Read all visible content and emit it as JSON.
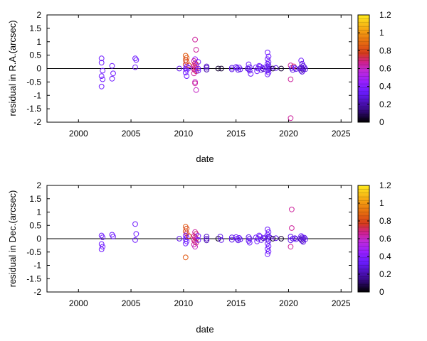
{
  "chart_data": [
    {
      "type": "scatter",
      "xlabel": "date",
      "ylabel": "residual in R.A.(arcsec)",
      "xlim": [
        1997,
        2026
      ],
      "ylim": [
        -2,
        2
      ],
      "xticks": [
        "2000",
        "2005",
        "2010",
        "2015",
        "2020",
        "2025"
      ],
      "yticks": [
        "2",
        "1.5",
        "1",
        "0.5",
        "0",
        "-0.5",
        "-1",
        "-1.5",
        "-2"
      ],
      "colorbar": {
        "range": [
          0,
          1.2
        ],
        "ticks": [
          "1.2",
          "1",
          "0.8",
          "0.6",
          "0.4",
          "0.2",
          "0"
        ]
      },
      "reference_line": 0,
      "points": [
        [
          2002.2,
          0.38,
          0.35
        ],
        [
          2002.2,
          0.22,
          0.35
        ],
        [
          2002.3,
          -0.08,
          0.35
        ],
        [
          2002.2,
          -0.28,
          0.35
        ],
        [
          2002.3,
          -0.4,
          0.35
        ],
        [
          2002.2,
          -0.67,
          0.35
        ],
        [
          2003.2,
          0.1,
          0.35
        ],
        [
          2003.3,
          -0.18,
          0.35
        ],
        [
          2003.2,
          -0.38,
          0.35
        ],
        [
          2005.4,
          0.38,
          0.35
        ],
        [
          2005.5,
          0.32,
          0.35
        ],
        [
          2005.4,
          0.05,
          0.35
        ],
        [
          2009.6,
          0.0,
          0.3
        ],
        [
          2010.2,
          0.48,
          0.85
        ],
        [
          2010.3,
          0.4,
          0.85
        ],
        [
          2010.2,
          0.32,
          0.8
        ],
        [
          2010.3,
          0.25,
          0.8
        ],
        [
          2010.2,
          0.15,
          0.75
        ],
        [
          2010.3,
          0.08,
          0.4
        ],
        [
          2010.2,
          0.0,
          0.35
        ],
        [
          2010.3,
          -0.05,
          0.35
        ],
        [
          2010.2,
          -0.15,
          0.35
        ],
        [
          2010.3,
          -0.28,
          0.35
        ],
        [
          2010.5,
          0.12,
          0.8
        ],
        [
          2010.5,
          0.02,
          0.35
        ],
        [
          2011.1,
          1.08,
          0.65
        ],
        [
          2011.2,
          0.7,
          0.65
        ],
        [
          2011.1,
          0.35,
          0.45
        ],
        [
          2011.0,
          0.28,
          0.65
        ],
        [
          2011.1,
          0.2,
          0.7
        ],
        [
          2011.2,
          0.15,
          0.7
        ],
        [
          2011.0,
          0.1,
          0.65
        ],
        [
          2011.1,
          0.06,
          0.7
        ],
        [
          2011.2,
          0.02,
          0.65
        ],
        [
          2011.0,
          -0.02,
          0.65
        ],
        [
          2011.1,
          -0.06,
          0.7
        ],
        [
          2011.2,
          -0.1,
          0.7
        ],
        [
          2011.0,
          -0.18,
          0.65
        ],
        [
          2011.1,
          -0.5,
          0.6
        ],
        [
          2011.1,
          -0.55,
          0.65
        ],
        [
          2011.2,
          -0.8,
          0.6
        ],
        [
          2011.4,
          0.25,
          0.35
        ],
        [
          2011.4,
          0.0,
          0.35
        ],
        [
          2011.4,
          -0.08,
          0.35
        ],
        [
          2012.2,
          0.08,
          0.25
        ],
        [
          2012.2,
          0.03,
          0.25
        ],
        [
          2012.2,
          -0.04,
          0.2
        ],
        [
          2013.3,
          0.0,
          0.05
        ],
        [
          2013.6,
          0.0,
          0.05
        ],
        [
          2014.6,
          0.03,
          0.3
        ],
        [
          2014.6,
          -0.03,
          0.3
        ],
        [
          2015.0,
          0.06,
          0.35
        ],
        [
          2015.1,
          0.02,
          0.3
        ],
        [
          2015.2,
          -0.05,
          0.3
        ],
        [
          2015.3,
          0.04,
          0.35
        ],
        [
          2015.4,
          -0.03,
          0.3
        ],
        [
          2016.2,
          0.16,
          0.35
        ],
        [
          2016.3,
          0.05,
          0.3
        ],
        [
          2016.2,
          -0.02,
          0.3
        ],
        [
          2016.3,
          -0.08,
          0.3
        ],
        [
          2016.4,
          -0.2,
          0.35
        ],
        [
          2016.1,
          0.0,
          0.3
        ],
        [
          2016.9,
          0.05,
          0.35
        ],
        [
          2017.1,
          0.0,
          0.3
        ],
        [
          2017.3,
          0.08,
          0.35
        ],
        [
          2017.4,
          -0.05,
          0.3
        ],
        [
          2017.5,
          0.02,
          0.3
        ],
        [
          2017.6,
          -0.02,
          0.25
        ],
        [
          2017.2,
          0.1,
          0.35
        ],
        [
          2017.8,
          0.05,
          0.35
        ],
        [
          2017.0,
          -0.1,
          0.35
        ],
        [
          2018.0,
          0.6,
          0.35
        ],
        [
          2018.1,
          0.45,
          0.35
        ],
        [
          2018.0,
          0.35,
          0.35
        ],
        [
          2018.1,
          0.25,
          0.35
        ],
        [
          2018.0,
          0.18,
          0.35
        ],
        [
          2018.1,
          0.12,
          0.3
        ],
        [
          2018.0,
          0.05,
          0.3
        ],
        [
          2018.1,
          -0.02,
          0.3
        ],
        [
          2018.0,
          -0.08,
          0.3
        ],
        [
          2018.1,
          -0.15,
          0.35
        ],
        [
          2018.0,
          -0.22,
          0.35
        ],
        [
          2018.2,
          0.0,
          0.3
        ],
        [
          2018.5,
          0.0,
          0.05
        ],
        [
          2018.8,
          0.02,
          0.3
        ],
        [
          2019.3,
          0.0,
          0.05
        ],
        [
          2020.2,
          0.12,
          0.65
        ],
        [
          2020.3,
          0.02,
          0.3
        ],
        [
          2020.4,
          -0.05,
          0.3
        ],
        [
          2020.2,
          -0.4,
          0.65
        ],
        [
          2020.2,
          -1.85,
          0.65
        ],
        [
          2020.5,
          0.08,
          0.7
        ],
        [
          2020.6,
          0.02,
          0.3
        ],
        [
          2020.7,
          -0.02,
          0.3
        ],
        [
          2021.2,
          0.3,
          0.35
        ],
        [
          2021.3,
          0.18,
          0.3
        ],
        [
          2021.4,
          0.1,
          0.3
        ],
        [
          2021.2,
          0.05,
          0.25
        ],
        [
          2021.3,
          0.0,
          0.2
        ],
        [
          2021.4,
          -0.04,
          0.2
        ],
        [
          2021.2,
          -0.08,
          0.25
        ],
        [
          2021.3,
          -0.12,
          0.3
        ],
        [
          2021.5,
          0.05,
          0.3
        ],
        [
          2021.6,
          -0.02,
          0.3
        ],
        [
          2021.1,
          0.0,
          0.25
        ]
      ]
    },
    {
      "type": "scatter",
      "xlabel": "date",
      "ylabel": "residual in Dec.(arcsec)",
      "xlim": [
        1997,
        2026
      ],
      "ylim": [
        -2,
        2
      ],
      "xticks": [
        "2000",
        "2005",
        "2010",
        "2015",
        "2020",
        "2025"
      ],
      "yticks": [
        "2",
        "1.5",
        "1",
        "0.5",
        "0",
        "-0.5",
        "-1",
        "-1.5",
        "-2"
      ],
      "colorbar": {
        "range": [
          0,
          1.2
        ],
        "ticks": [
          "1.2",
          "1",
          "0.8",
          "0.6",
          "0.4",
          "0.2",
          "0"
        ]
      },
      "reference_line": 0,
      "points": [
        [
          2002.2,
          0.12,
          0.35
        ],
        [
          2002.3,
          0.05,
          0.35
        ],
        [
          2002.2,
          -0.2,
          0.35
        ],
        [
          2002.3,
          -0.3,
          0.35
        ],
        [
          2002.2,
          -0.4,
          0.35
        ],
        [
          2003.2,
          0.15,
          0.35
        ],
        [
          2003.3,
          0.08,
          0.35
        ],
        [
          2005.4,
          0.55,
          0.35
        ],
        [
          2005.5,
          0.18,
          0.35
        ],
        [
          2005.4,
          -0.05,
          0.35
        ],
        [
          2009.6,
          0.0,
          0.3
        ],
        [
          2010.2,
          0.45,
          0.85
        ],
        [
          2010.3,
          0.38,
          0.8
        ],
        [
          2010.2,
          0.28,
          0.8
        ],
        [
          2010.3,
          0.2,
          0.75
        ],
        [
          2010.2,
          0.12,
          0.4
        ],
        [
          2010.3,
          0.05,
          0.35
        ],
        [
          2010.2,
          -0.02,
          0.35
        ],
        [
          2010.3,
          -0.1,
          0.35
        ],
        [
          2010.2,
          -0.18,
          0.35
        ],
        [
          2010.2,
          -0.7,
          0.85
        ],
        [
          2010.5,
          0.1,
          0.8
        ],
        [
          2011.1,
          0.25,
          0.65
        ],
        [
          2011.2,
          0.18,
          0.7
        ],
        [
          2011.0,
          0.1,
          0.65
        ],
        [
          2011.1,
          0.05,
          0.7
        ],
        [
          2011.2,
          0.0,
          0.65
        ],
        [
          2011.0,
          -0.05,
          0.65
        ],
        [
          2011.1,
          -0.1,
          0.7
        ],
        [
          2011.2,
          -0.15,
          0.7
        ],
        [
          2011.0,
          -0.22,
          0.65
        ],
        [
          2011.1,
          -0.3,
          0.6
        ],
        [
          2011.4,
          0.1,
          0.35
        ],
        [
          2011.4,
          -0.05,
          0.35
        ],
        [
          2012.2,
          0.08,
          0.25
        ],
        [
          2012.2,
          0.0,
          0.25
        ],
        [
          2012.2,
          -0.06,
          0.2
        ],
        [
          2013.3,
          0.0,
          0.05
        ],
        [
          2013.5,
          0.08,
          0.3
        ],
        [
          2013.6,
          -0.05,
          0.3
        ],
        [
          2014.6,
          0.05,
          0.3
        ],
        [
          2014.6,
          -0.04,
          0.3
        ],
        [
          2015.0,
          0.06,
          0.35
        ],
        [
          2015.1,
          0.0,
          0.3
        ],
        [
          2015.2,
          -0.06,
          0.3
        ],
        [
          2015.3,
          0.03,
          0.35
        ],
        [
          2015.4,
          -0.03,
          0.3
        ],
        [
          2016.2,
          0.06,
          0.3
        ],
        [
          2016.3,
          0.0,
          0.3
        ],
        [
          2016.2,
          -0.08,
          0.3
        ],
        [
          2016.3,
          -0.15,
          0.35
        ],
        [
          2016.9,
          0.05,
          0.35
        ],
        [
          2017.1,
          0.0,
          0.3
        ],
        [
          2017.3,
          0.08,
          0.35
        ],
        [
          2017.4,
          -0.05,
          0.3
        ],
        [
          2017.6,
          0.02,
          0.25
        ],
        [
          2017.2,
          0.12,
          0.35
        ],
        [
          2017.8,
          0.05,
          0.35
        ],
        [
          2017.0,
          -0.1,
          0.35
        ],
        [
          2018.0,
          0.35,
          0.35
        ],
        [
          2018.1,
          0.25,
          0.35
        ],
        [
          2018.0,
          0.15,
          0.35
        ],
        [
          2018.1,
          0.08,
          0.3
        ],
        [
          2018.0,
          0.0,
          0.3
        ],
        [
          2018.1,
          -0.08,
          0.3
        ],
        [
          2018.0,
          -0.18,
          0.35
        ],
        [
          2018.1,
          -0.28,
          0.35
        ],
        [
          2018.0,
          -0.38,
          0.35
        ],
        [
          2018.1,
          -0.48,
          0.35
        ],
        [
          2018.0,
          -0.58,
          0.35
        ],
        [
          2018.2,
          0.05,
          0.3
        ],
        [
          2018.5,
          0.0,
          0.05
        ],
        [
          2018.8,
          0.02,
          0.3
        ],
        [
          2019.3,
          0.0,
          0.05
        ],
        [
          2020.3,
          1.1,
          0.65
        ],
        [
          2020.3,
          0.4,
          0.65
        ],
        [
          2020.2,
          0.08,
          0.3
        ],
        [
          2020.4,
          0.0,
          0.3
        ],
        [
          2020.2,
          -0.06,
          0.3
        ],
        [
          2020.2,
          -0.3,
          0.65
        ],
        [
          2020.6,
          0.02,
          0.3
        ],
        [
          2020.7,
          -0.02,
          0.3
        ],
        [
          2021.2,
          0.1,
          0.35
        ],
        [
          2021.3,
          0.05,
          0.3
        ],
        [
          2021.4,
          0.0,
          0.25
        ],
        [
          2021.2,
          -0.04,
          0.2
        ],
        [
          2021.3,
          -0.08,
          0.25
        ],
        [
          2021.4,
          -0.12,
          0.3
        ],
        [
          2021.5,
          0.04,
          0.3
        ],
        [
          2021.6,
          -0.02,
          0.3
        ],
        [
          2021.1,
          0.0,
          0.25
        ]
      ]
    }
  ]
}
